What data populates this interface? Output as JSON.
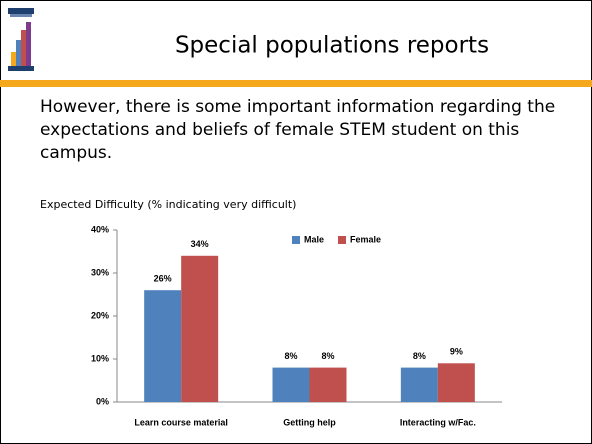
{
  "slide": {
    "title": "Special populations reports",
    "body": "However, there is some important information regarding the expectations and beliefs of female STEM student on this campus."
  },
  "chart_data": {
    "type": "bar",
    "title": "Expected Difficulty (% indicating very difficult)",
    "categories": [
      "Learn course material",
      "Getting help",
      "Interacting w/Fac."
    ],
    "series": [
      {
        "name": "Male",
        "color": "#4f81bd",
        "values": [
          26,
          8,
          8
        ],
        "value_labels": [
          "26%",
          "8%",
          "8%"
        ]
      },
      {
        "name": "Female",
        "color": "#c0504d",
        "values": [
          34,
          8,
          9
        ],
        "value_labels": [
          "34%",
          "8%",
          "9%"
        ]
      }
    ],
    "ylim": [
      0,
      40
    ],
    "yticks": [
      {
        "value": 0,
        "label": "0%"
      },
      {
        "value": 10,
        "label": "10%"
      },
      {
        "value": 20,
        "label": "20%"
      },
      {
        "value": 30,
        "label": "30%"
      },
      {
        "value": 40,
        "label": "40%"
      }
    ],
    "grid": false,
    "legend": "top"
  }
}
